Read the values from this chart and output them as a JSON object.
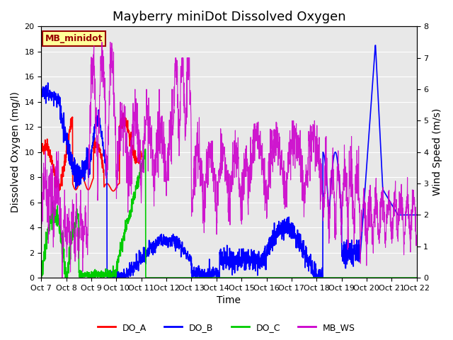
{
  "title": "Mayberry miniDot Dissolved Oxygen",
  "xlabel": "Time",
  "ylabel_left": "Dissolved Oxygen (mg/l)",
  "ylabel_right": "Wind Speed (m/s)",
  "ylim_left": [
    0,
    20
  ],
  "ylim_right": [
    0.0,
    8.0
  ],
  "yticks_left": [
    0,
    2,
    4,
    6,
    8,
    10,
    12,
    14,
    16,
    18,
    20
  ],
  "yticks_right": [
    0.0,
    1.0,
    2.0,
    3.0,
    4.0,
    5.0,
    6.0,
    7.0,
    8.0
  ],
  "xtick_labels": [
    "Oct 7",
    "Oct 8",
    "Oct 9",
    "Oct 10",
    "Oct 11",
    "Oct 12",
    "Oct 13",
    "Oct 14",
    "Oct 15",
    "Oct 16",
    "Oct 17",
    "Oct 18",
    "Oct 19",
    "Oct 20",
    "Oct 21",
    "Oct 22"
  ],
  "legend_label": "MB_minidot",
  "legend_box_color": "#ffff99",
  "legend_box_edge_color": "#990000",
  "series_labels": [
    "DO_A",
    "DO_B",
    "DO_C",
    "MB_WS"
  ],
  "series_colors": [
    "#ff0000",
    "#0000ff",
    "#00cc00",
    "#cc00cc"
  ],
  "bg_color": "#e8e8e8",
  "fig_color": "#ffffff",
  "title_fontsize": 13,
  "axis_label_fontsize": 10,
  "tick_fontsize": 8
}
